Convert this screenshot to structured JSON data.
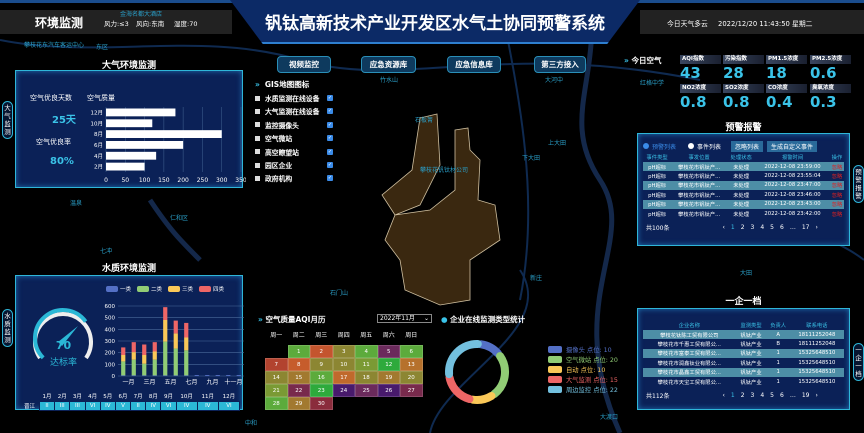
{
  "header": {
    "section": "环境监测",
    "weather_wind": "风力:≤3",
    "weather_dir": "风向:东南",
    "humidity": "湿度:70",
    "title": "钒钛高新技术产业开发区水气土协同预警系统",
    "weather_today": "今日天气多云",
    "datetime": "2022/12/20 11:43:50 星期二"
  },
  "map_labels": [
    "金海名都大酒店",
    "攀枝花东汽车客运中心",
    "东区",
    "大河中",
    "竹水山",
    "石板箐",
    "上大田",
    "下大田",
    "攀枝花钒钛材公司",
    "石门山",
    "新庄",
    "大田",
    "红格中学",
    "温泉",
    "仁和区",
    "七冲",
    "中和",
    "大渡口"
  ],
  "air_panel": {
    "title": "大气环境监测",
    "side_tab": "大气监测",
    "good_days_label": "空气优良天数",
    "good_days": "25天",
    "good_rate_label": "空气优良率",
    "good_rate": "80%",
    "chart_title": "空气质量"
  },
  "water_panel": {
    "title": "水质环境监测",
    "side_tab": "水质监测",
    "gauge_value": "70",
    "gauge_label": "达标率",
    "station": "晋江",
    "months": [
      "1月",
      "2月",
      "3月",
      "4月",
      "5月",
      "6月",
      "7月",
      "8月",
      "9月",
      "10月",
      "11月",
      "12月"
    ],
    "levels": [
      "II",
      "III",
      "III",
      "VI",
      "IV",
      "V",
      "II",
      "IV",
      "VI",
      "IV",
      "IV",
      "VI"
    ]
  },
  "center_buttons": [
    "视频监控",
    "应急资源库",
    "应急信息库",
    "第三方接入"
  ],
  "gis": {
    "title": "GIS地图图标",
    "items": [
      "水质监测在线设备",
      "大气监测在线设备",
      "监控摄像头",
      "空气微站",
      "高空瞭望站",
      "园区企业",
      "政府机构"
    ],
    "checked": true
  },
  "calendar": {
    "title": "空气质量AQI月历",
    "month_select": "2022年11月",
    "weekdays": [
      "周一",
      "周二",
      "周三",
      "周四",
      "周五",
      "周六",
      "周日"
    ],
    "first_weekday": "周二",
    "days": [
      {
        "d": "1",
        "c": "#5cab3c"
      },
      {
        "d": "2",
        "c": "#c4552e"
      },
      {
        "d": "3",
        "c": "#8c8632"
      },
      {
        "d": "4",
        "c": "#5cab3c"
      },
      {
        "d": "5",
        "c": "#6b2a5c"
      },
      {
        "d": "6",
        "c": "#5cab3c"
      },
      {
        "d": "7",
        "c": "#b2432f"
      },
      {
        "d": "8",
        "c": "#c65c2c"
      },
      {
        "d": "9",
        "c": "#8c8632"
      },
      {
        "d": "10",
        "c": "#8c8632"
      },
      {
        "d": "11",
        "c": "#7a9a34"
      },
      {
        "d": "12",
        "c": "#2eaa3c"
      },
      {
        "d": "13",
        "c": "#b6712c"
      },
      {
        "d": "14",
        "c": "#8c8632"
      },
      {
        "d": "15",
        "c": "#a2792f"
      },
      {
        "d": "16",
        "c": "#5cab3c"
      },
      {
        "d": "17",
        "c": "#c0692c"
      },
      {
        "d": "18",
        "c": "#8c8632"
      },
      {
        "d": "19",
        "c": "#a2792f"
      },
      {
        "d": "20",
        "c": "#8c8632"
      },
      {
        "d": "21",
        "c": "#7a9a34"
      },
      {
        "d": "22",
        "c": "#782a4c"
      },
      {
        "d": "23",
        "c": "#2eaa3c"
      },
      {
        "d": "24",
        "c": "#481a6c"
      },
      {
        "d": "25",
        "c": "#6b2a5c"
      },
      {
        "d": "26",
        "c": "#481a6c"
      },
      {
        "d": "27",
        "c": "#782a4c"
      },
      {
        "d": "28",
        "c": "#5cab3c"
      },
      {
        "d": "29",
        "c": "#a2792f"
      },
      {
        "d": "30",
        "c": "#8a2c3c"
      }
    ]
  },
  "donut": {
    "title": "企业在线监测类型统计",
    "items": [
      {
        "label": "摄像头 点位: 10",
        "value": 10,
        "color": "#5470c6"
      },
      {
        "label": "空气微站 点位: 20",
        "value": 20,
        "color": "#91cc75"
      },
      {
        "label": "自动 点位: 10",
        "value": 10,
        "color": "#fac858"
      },
      {
        "label": "大气监测 点位: 15",
        "value": 15,
        "color": "#ee6666"
      },
      {
        "label": "周边监控 点位: 22",
        "value": 22,
        "color": "#73c0de"
      }
    ]
  },
  "today_air": {
    "title": "今日空气",
    "metrics": [
      {
        "label": "AQI指数",
        "value": "43"
      },
      {
        "label": "污染指数",
        "value": "28"
      },
      {
        "label": "PM1.5浓度",
        "value": "18"
      },
      {
        "label": "PM2.5浓度",
        "value": "0.6"
      },
      {
        "label": "NO2浓度",
        "value": "0.8"
      },
      {
        "label": "SO2浓度",
        "value": "0.8"
      },
      {
        "label": "CO浓度",
        "value": "0.4"
      },
      {
        "label": "臭氧浓度",
        "value": "0.3"
      }
    ]
  },
  "alerts": {
    "title": "预警报警",
    "side_tab": "预警报警",
    "radio_alerts": "预警列表",
    "radio_events": "事件列表",
    "btn_ignore": "忽略列表",
    "btn_create": "生成自定义事件",
    "columns": [
      "事件类型",
      "事发位置",
      "处理状态",
      "报警时间",
      "操作"
    ],
    "rows": [
      [
        "pH超标",
        "攀枝花市钒钛产...",
        "未处理",
        "2022-12-08 23:59:00",
        "忽略"
      ],
      [
        "pH超标",
        "攀枝花市钒钛产...",
        "未处理",
        "2022-12-08 23:55:04",
        "忽略"
      ],
      [
        "pH超标",
        "攀枝花市钒钛产...",
        "未处理",
        "2022-12-08 23:47:00",
        "忽略"
      ],
      [
        "pH超标",
        "攀枝花市钒钛产...",
        "未处理",
        "2022-12-08 23:46:00",
        "忽略"
      ],
      [
        "pH超标",
        "攀枝花市钒钛产...",
        "未处理",
        "2022-12-08 23:43:00",
        "忽略"
      ],
      [
        "pH超标",
        "攀枝花市钒钛产...",
        "未处理",
        "2022-12-08 23:42:00",
        "忽略"
      ]
    ],
    "total": "共100条",
    "pages": [
      "‹",
      "1",
      "2",
      "3",
      "4",
      "5",
      "6",
      "…",
      "17",
      "›"
    ]
  },
  "enterprise": {
    "title": "一企一档",
    "side_tab": "一企一档",
    "columns": [
      "企业名称",
      "监测类型",
      "负责人",
      "联系电话"
    ],
    "rows": [
      [
        "攀枝花钛陈工贸有限公司",
        "钒钛产业",
        "A",
        "18111252048"
      ],
      [
        "攀枝花市千惠工贸有限公...",
        "钒钛产业",
        "B",
        "18111252048"
      ],
      [
        "攀枝花市富泰工贸有限公...",
        "钒钛产业",
        "1",
        "15325648510"
      ],
      [
        "攀枝花市润鑫钛业有限公...",
        "钒钛产业",
        "1",
        "15325648510"
      ],
      [
        "攀枝花市晶鑫工贸有限公...",
        "钒钛产业",
        "1",
        "15325648510"
      ],
      [
        "攀枝花市天宝工贸有限公...",
        "钒钛产业",
        "1",
        "15325648510"
      ]
    ],
    "total": "共112条",
    "pages": [
      "‹",
      "1",
      "2",
      "3",
      "4",
      "5",
      "6",
      "…",
      "19",
      "›"
    ]
  },
  "chart_data": [
    {
      "type": "bar",
      "orientation": "horizontal",
      "title": "空气质量",
      "categories": [
        "12月",
        "10月",
        "8月",
        "6月",
        "4月",
        "2月"
      ],
      "values": [
        180,
        120,
        300,
        200,
        130,
        100
      ],
      "xlim": [
        0,
        350
      ],
      "xticks": [
        0,
        50,
        100,
        150,
        200,
        250,
        300,
        350
      ],
      "grid": true
    },
    {
      "type": "bar",
      "stacked": true,
      "categories": [
        "一月",
        "二月",
        "三月",
        "四月",
        "五月",
        "六月",
        "七月",
        "八月",
        "九月",
        "十月",
        "十一月",
        "十二月"
      ],
      "xtick_labels_shown": [
        "一月",
        "三月",
        "五月",
        "七月",
        "九月",
        "十一月"
      ],
      "ylim": [
        0,
        600
      ],
      "yticks": [
        0,
        100,
        200,
        300,
        400,
        500,
        600
      ],
      "legend": "top",
      "series": [
        {
          "name": "一类",
          "color": "#5470c6",
          "values": [
            5,
            5,
            5,
            5,
            5,
            5,
            5,
            8,
            8,
            8,
            8,
            8
          ]
        },
        {
          "name": "二类",
          "color": "#91cc75",
          "values": [
            120,
            135,
            100,
            135,
            290,
            230,
            215,
            0,
            0,
            0,
            0,
            0
          ]
        },
        {
          "name": "三类",
          "color": "#fac858",
          "values": [
            55,
            65,
            75,
            70,
            185,
            130,
            110,
            0,
            0,
            0,
            0,
            0
          ]
        },
        {
          "name": "四类",
          "color": "#ee6666",
          "values": [
            65,
            85,
            90,
            80,
            110,
            110,
            125,
            0,
            0,
            0,
            0,
            0
          ]
        }
      ]
    }
  ]
}
